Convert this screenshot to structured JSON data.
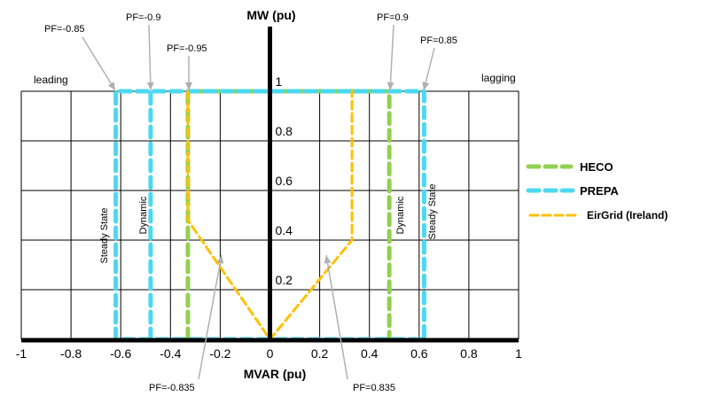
{
  "chart_data": {
    "type": "line",
    "xlabel": "MVAR (pu)",
    "ylabel": "MW (pu)",
    "xlim": [
      -1,
      1
    ],
    "ylim": [
      0,
      1
    ],
    "grid": true,
    "legend_position": "right",
    "x_ticks": [
      "-1",
      "-0.8",
      "-0.6",
      "-0.4",
      "-0.2",
      "0",
      "0.2",
      "0.4",
      "0.6",
      "0.8",
      "1"
    ],
    "y_ticks": [
      "0.2",
      "0.4",
      "0.6",
      "0.8",
      "1"
    ],
    "series": [
      {
        "name": "HECO",
        "color": "#92d050",
        "style": "dashed-thick",
        "points": [
          [
            -0.33,
            0
          ],
          [
            -0.33,
            1
          ],
          [
            0.48,
            1
          ],
          [
            0.48,
            0
          ]
        ]
      },
      {
        "name": "PREPA",
        "color": "#4dd8f0",
        "style": "dashed-thick",
        "segments": [
          [
            [
              -0.62,
              0
            ],
            [
              -0.62,
              1
            ],
            [
              0.62,
              1
            ],
            [
              0.62,
              0
            ],
            [
              -0.62,
              0
            ]
          ],
          [
            [
              -0.48,
              0
            ],
            [
              -0.48,
              1
            ]
          ]
        ]
      },
      {
        "name": "EirGrid (Ireland)",
        "color": "#ffc000",
        "style": "dashed-thin",
        "points": [
          [
            -0.33,
            1
          ],
          [
            -0.33,
            0.48
          ],
          [
            0,
            0
          ],
          [
            0.33,
            0.4
          ],
          [
            0.33,
            1
          ]
        ]
      }
    ],
    "annotations": {
      "leading": "leading",
      "lagging": "lagging",
      "pf_m085": "PF=-0.85",
      "pf_m09": "PF=-0.9",
      "pf_m095": "PF=-0.95",
      "pf_09": "PF=0.9",
      "pf_085": "PF=0.85",
      "pf_m0835": "PF=-0.835",
      "pf_0835": "PF=0.835",
      "steady_state_left": "Steady State",
      "dynamic_left": "Dynamic",
      "dynamic_right": "Dynamic",
      "steady_state_right": "Steady State"
    }
  }
}
